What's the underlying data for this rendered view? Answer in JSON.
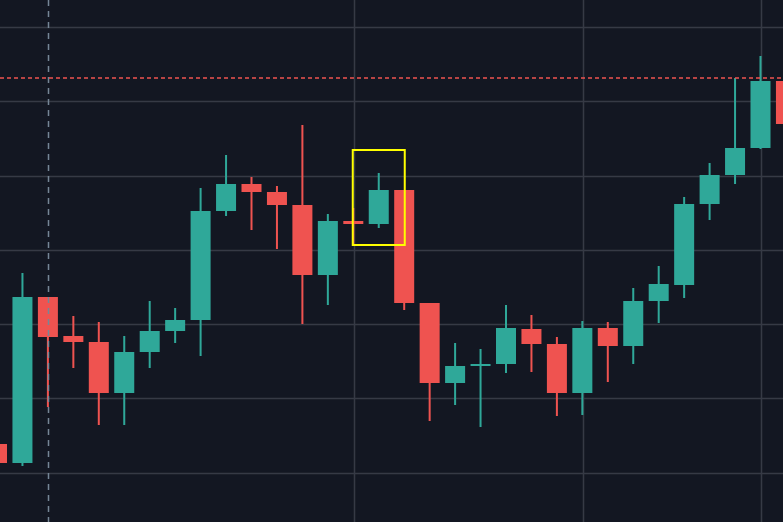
{
  "chart_data": {
    "type": "candlestick",
    "title": "",
    "xlabel": "",
    "ylabel": "",
    "ylim": [
      0,
      522
    ],
    "grid": true,
    "colors": {
      "background": "#131722",
      "grid": "#363a45",
      "up": "#2fa899",
      "down": "#ef5350",
      "crosshair": "#758696",
      "price_line": "#ef5350",
      "highlight_box": "#ffff00"
    },
    "price_line_level": 444,
    "highlight_candle_index": 15,
    "candles": [
      {
        "o": 78,
        "h": 78,
        "l": 59,
        "c": 59
      },
      {
        "o": 59,
        "h": 249,
        "l": 56,
        "c": 225
      },
      {
        "o": 225,
        "h": 225,
        "l": 115,
        "c": 185
      },
      {
        "o": 186,
        "h": 206,
        "l": 154,
        "c": 180
      },
      {
        "o": 180,
        "h": 200,
        "l": 97,
        "c": 129
      },
      {
        "o": 129,
        "h": 186,
        "l": 97,
        "c": 170
      },
      {
        "o": 170,
        "h": 221,
        "l": 154,
        "c": 191
      },
      {
        "o": 191,
        "h": 214,
        "l": 179,
        "c": 202
      },
      {
        "o": 202,
        "h": 334,
        "l": 166,
        "c": 311
      },
      {
        "o": 311,
        "h": 367,
        "l": 306,
        "c": 338
      },
      {
        "o": 338,
        "h": 345,
        "l": 292,
        "c": 330
      },
      {
        "o": 330,
        "h": 336,
        "l": 273,
        "c": 317
      },
      {
        "o": 317,
        "h": 397,
        "l": 198,
        "c": 247
      },
      {
        "o": 247,
        "h": 308,
        "l": 217,
        "c": 301
      },
      {
        "o": 301,
        "h": 314,
        "l": 277,
        "c": 298
      },
      {
        "o": 298,
        "h": 349,
        "l": 294,
        "c": 332
      },
      {
        "o": 332,
        "h": 332,
        "l": 212,
        "c": 219
      },
      {
        "o": 219,
        "h": 219,
        "l": 101,
        "c": 139
      },
      {
        "o": 139,
        "h": 179,
        "l": 117,
        "c": 156
      },
      {
        "o": 156,
        "h": 173,
        "l": 95,
        "c": 158
      },
      {
        "o": 158,
        "h": 217,
        "l": 149,
        "c": 194
      },
      {
        "o": 193,
        "h": 207,
        "l": 150,
        "c": 178
      },
      {
        "o": 178,
        "h": 185,
        "l": 106,
        "c": 129
      },
      {
        "o": 129,
        "h": 201,
        "l": 107,
        "c": 194
      },
      {
        "o": 194,
        "h": 200,
        "l": 140,
        "c": 176
      },
      {
        "o": 176,
        "h": 234,
        "l": 158,
        "c": 221
      },
      {
        "o": 221,
        "h": 256,
        "l": 199,
        "c": 238
      },
      {
        "o": 237,
        "h": 325,
        "l": 224,
        "c": 318
      },
      {
        "o": 318,
        "h": 359,
        "l": 302,
        "c": 347
      },
      {
        "o": 347,
        "h": 444,
        "l": 338,
        "c": 374
      },
      {
        "o": 374,
        "h": 466,
        "l": 373,
        "c": 441
      },
      {
        "o": 441,
        "h": 441,
        "l": 398,
        "c": 398
      }
    ]
  }
}
